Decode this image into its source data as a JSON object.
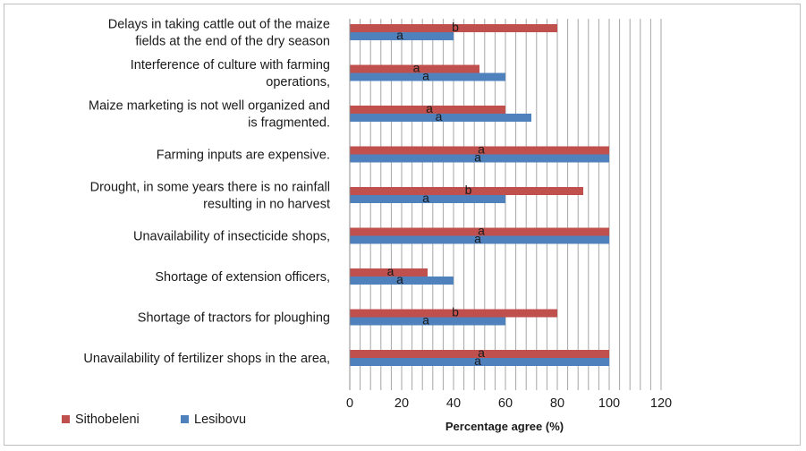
{
  "chart_data": {
    "type": "bar",
    "orientation": "horizontal",
    "title": "",
    "xlabel": "Percentage agree (%)",
    "ylabel": "",
    "xlim": [
      0,
      120
    ],
    "xticks": [
      0,
      20,
      40,
      60,
      80,
      100,
      120
    ],
    "grid": "vertical",
    "legend_position": "bottom-left",
    "categories": [
      [
        "Delays in taking cattle out of the maize",
        "fields at the end of the dry season"
      ],
      [
        "Interference of culture with farming",
        "operations,"
      ],
      [
        "Maize marketing is not well organized and",
        "is fragmented."
      ],
      [
        "Farming inputs are expensive."
      ],
      [
        "Drought, in some years there is no rainfall",
        "resulting in no harvest"
      ],
      [
        "Unavailability of insecticide shops,"
      ],
      [
        "Shortage of extension officers,"
      ],
      [
        "Shortage of tractors for ploughing"
      ],
      [
        "Unavailability of fertilizer shops in the area,"
      ]
    ],
    "series": [
      {
        "name": "Sithobeleni",
        "color": "#c0504d",
        "values": [
          80,
          50,
          60,
          100,
          90,
          100,
          30,
          80,
          100
        ],
        "letters": [
          "b",
          "a",
          "a",
          "a",
          "b",
          "a",
          "a",
          "b",
          "a"
        ]
      },
      {
        "name": "Lesibovu",
        "color": "#4f81bd",
        "values": [
          40,
          60,
          70,
          100,
          60,
          100,
          40,
          60,
          100
        ],
        "letters": [
          "a",
          "a",
          "a",
          "a",
          "a",
          "a",
          "a",
          "a",
          "a"
        ]
      }
    ]
  }
}
